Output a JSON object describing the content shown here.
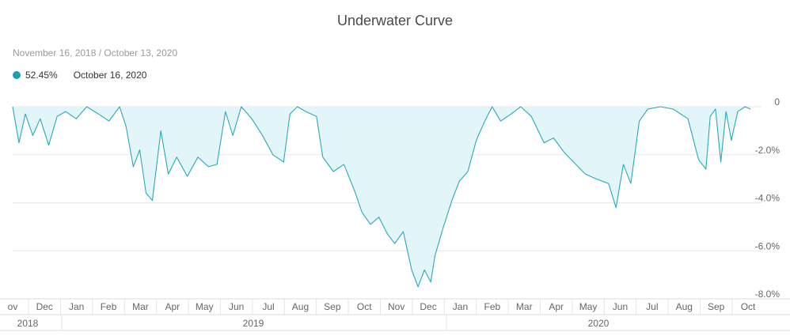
{
  "title": "Underwater Curve",
  "date_range": "November 16, 2018 / October 13, 2020",
  "legend": {
    "value": "52.45%",
    "date": "October 16, 2020",
    "color": "#1a9fb5"
  },
  "colors": {
    "line": "#2aa8ba",
    "fill": "#e2f6f9",
    "grid": "#e6e6e6"
  },
  "chart_data": {
    "type": "area",
    "title": "Underwater Curve",
    "xlabel": "",
    "ylabel": "",
    "ylim": [
      -8.0,
      0
    ],
    "y_ticks": [
      0,
      -2.0,
      -4.0,
      -6.0,
      -8.0
    ],
    "y_tick_labels": [
      "0",
      "-2.0%",
      "-4.0%",
      "-6.0%",
      "-8.0%"
    ],
    "grid": true,
    "x_range": [
      "2018-11-16",
      "2020-10-13"
    ],
    "month_labels": [
      "ov",
      "Dec",
      "Jan",
      "Feb",
      "Mar",
      "Apr",
      "May",
      "Jun",
      "Jul",
      "Aug",
      "Sep",
      "Oct",
      "Nov",
      "Dec",
      "Jan",
      "Feb",
      "Mar",
      "Apr",
      "May",
      "Jun",
      "Jul",
      "Aug",
      "Sep",
      "Oct"
    ],
    "year_labels": [
      "2018",
      "2019",
      "2020"
    ],
    "series": [
      {
        "x": [
          "2018-11-16",
          "2018-11-22",
          "2018-11-28",
          "2018-12-05",
          "2018-12-12",
          "2018-12-20",
          "2018-12-28",
          "2019-01-05",
          "2019-01-15",
          "2019-01-25",
          "2019-02-05",
          "2019-02-15",
          "2019-02-25",
          "2019-03-03",
          "2019-03-10",
          "2019-03-16",
          "2019-03-22",
          "2019-03-28",
          "2019-04-05",
          "2019-04-12",
          "2019-04-20",
          "2019-04-30",
          "2019-05-10",
          "2019-05-20",
          "2019-05-28",
          "2019-06-05",
          "2019-06-12",
          "2019-06-20",
          "2019-06-30",
          "2019-07-10",
          "2019-07-20",
          "2019-07-30",
          "2019-08-05",
          "2019-08-12",
          "2019-08-20",
          "2019-08-30",
          "2019-09-05",
          "2019-09-15",
          "2019-09-25",
          "2019-10-05",
          "2019-10-12",
          "2019-10-20",
          "2019-10-28",
          "2019-11-05",
          "2019-11-12",
          "2019-11-20",
          "2019-11-28",
          "2019-12-04",
          "2019-12-10",
          "2019-12-16",
          "2019-12-20",
          "2019-12-28",
          "2020-01-05",
          "2020-01-12",
          "2020-01-20",
          "2020-01-28",
          "2020-02-05",
          "2020-02-12",
          "2020-02-20",
          "2020-03-01",
          "2020-03-10",
          "2020-03-20",
          "2020-04-01",
          "2020-04-10",
          "2020-04-20",
          "2020-05-01",
          "2020-05-10",
          "2020-05-20",
          "2020-06-01",
          "2020-06-08",
          "2020-06-15",
          "2020-06-22",
          "2020-06-30",
          "2020-07-08",
          "2020-07-20",
          "2020-08-01",
          "2020-08-15",
          "2020-08-25",
          "2020-09-01",
          "2020-09-05",
          "2020-09-10",
          "2020-09-15",
          "2020-09-20",
          "2020-09-25",
          "2020-10-01",
          "2020-10-08",
          "2020-10-13"
        ],
        "y": [
          0,
          -1.5,
          -0.3,
          -1.2,
          -0.5,
          -1.6,
          -0.4,
          -0.2,
          -0.5,
          0,
          -0.3,
          -0.6,
          0,
          -0.8,
          -2.5,
          -1.8,
          -3.6,
          -3.9,
          -1.0,
          -2.8,
          -2.1,
          -2.9,
          -2.1,
          -2.5,
          -2.4,
          -0.2,
          -1.2,
          0,
          -0.5,
          -1.2,
          -2.0,
          -2.3,
          -0.3,
          0,
          -0.2,
          -0.4,
          -2.1,
          -2.7,
          -2.4,
          -3.5,
          -4.4,
          -4.9,
          -4.6,
          -5.3,
          -5.7,
          -5.2,
          -6.8,
          -7.5,
          -6.8,
          -7.3,
          -6.2,
          -5.0,
          -3.9,
          -3.1,
          -2.7,
          -1.4,
          -0.6,
          0,
          -0.6,
          -0.3,
          0,
          -0.4,
          -1.5,
          -1.3,
          -1.9,
          -2.4,
          -2.8,
          -3.0,
          -3.2,
          -4.2,
          -2.4,
          -3.2,
          -0.6,
          -0.1,
          0,
          -0.1,
          -0.5,
          -2.2,
          -2.6,
          -0.4,
          -0.1,
          -2.3,
          -0.2,
          -1.4,
          -0.2,
          0,
          -0.1
        ]
      }
    ]
  }
}
